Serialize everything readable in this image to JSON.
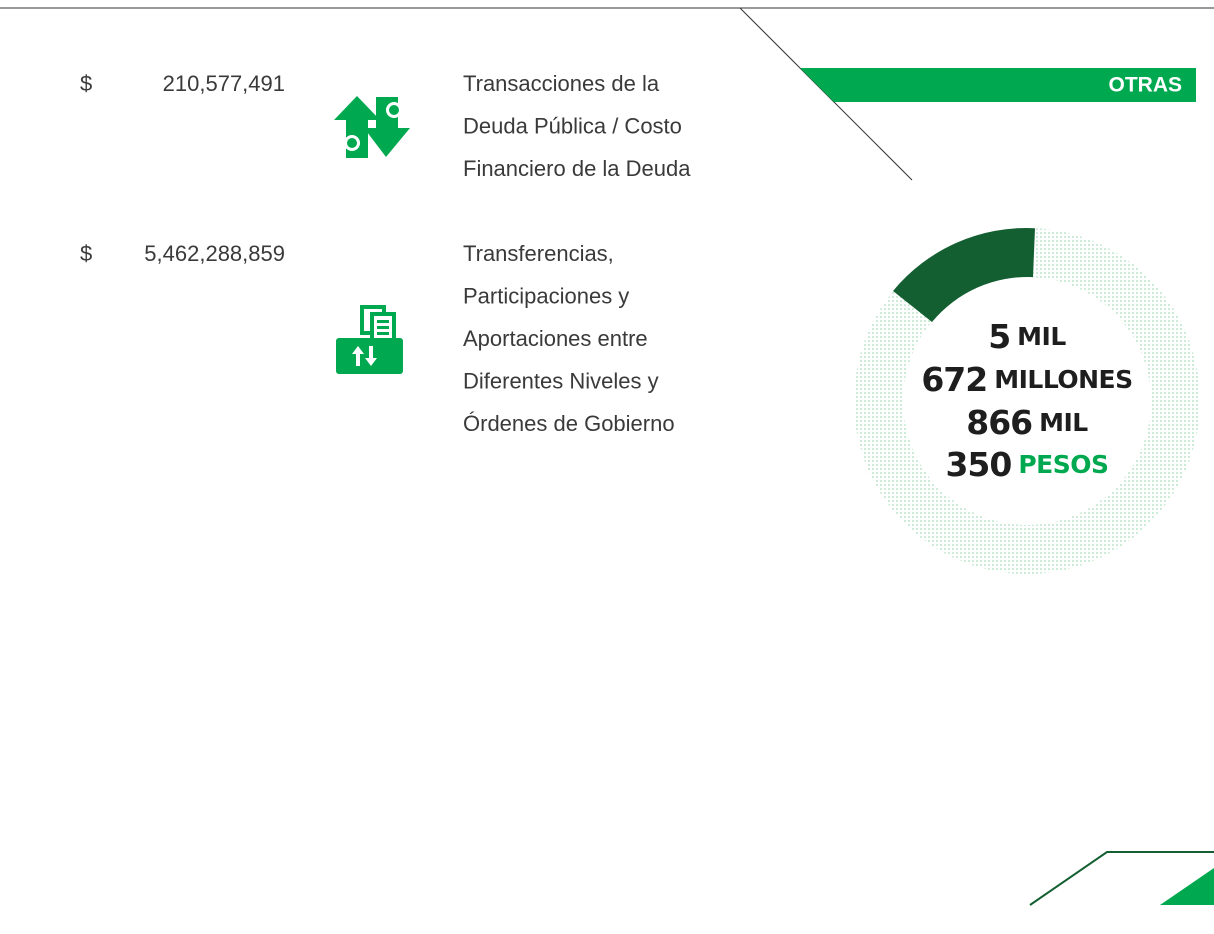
{
  "rows": [
    {
      "currency": "$",
      "amount": "210,577,491",
      "description": [
        "Transacciones de la",
        "Deuda Pública / Costo",
        "Financiero de la Deuda"
      ]
    },
    {
      "currency": "$",
      "amount": "5,462,288,859",
      "description": [
        "Transferencias,",
        "Participaciones y",
        "Aportaciones entre",
        "Diferentes Niveles y",
        "Órdenes de Gobierno"
      ]
    }
  ],
  "banner": "OTRAS",
  "total": [
    {
      "number": "5",
      "unit": "MIL"
    },
    {
      "number": "672",
      "unit": "MILLONES"
    },
    {
      "number": "866",
      "unit": "MIL"
    },
    {
      "number": "350",
      "unit": "PESOS"
    }
  ]
}
